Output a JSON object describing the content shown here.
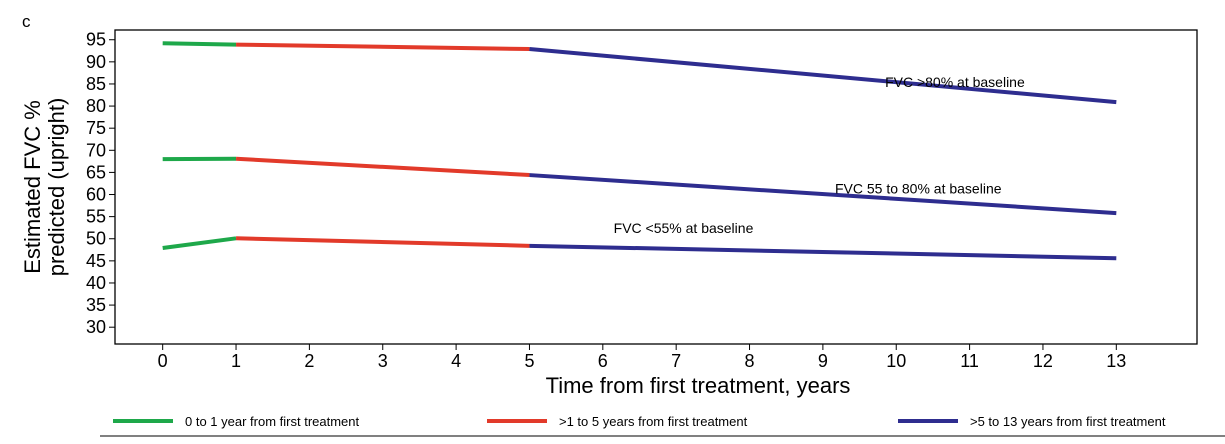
{
  "panel_label": "c",
  "chart_data": {
    "type": "line",
    "xlabel": "Time from first treatment, years",
    "ylabel": "Estimated FVC % predicted (upright)",
    "ylabel_lines": [
      "Estimated FVC %",
      "predicted (upright)"
    ],
    "xlim": [
      -0.65,
      14.1
    ],
    "ylim": [
      26.2,
      97.2
    ],
    "x_ticks": [
      0,
      1,
      2,
      3,
      4,
      5,
      6,
      7,
      8,
      9,
      10,
      11,
      12,
      13
    ],
    "y_ticks": [
      30,
      35,
      40,
      45,
      50,
      55,
      60,
      65,
      70,
      75,
      80,
      85,
      90,
      95
    ],
    "grid": false,
    "legend_position": "bottom",
    "segments": [
      {
        "name": "0 to 1 year from first treatment",
        "color": "#1ea84a",
        "x_range": [
          0,
          1
        ]
      },
      {
        "name": ">1 to 5 years from first treatment",
        "color": "#e23a2a",
        "x_range": [
          1,
          5
        ]
      },
      {
        "name": ">5 to 13 years from first treatment",
        "color": "#2e2d8f",
        "x_range": [
          5,
          13
        ]
      }
    ],
    "series": [
      {
        "label": "FVC >80% at baseline",
        "x": [
          0,
          1,
          5,
          13
        ],
        "y": [
          94.2,
          93.9,
          92.9,
          80.9
        ],
        "label_at": [
          10.8,
          84.3
        ]
      },
      {
        "label": "FVC 55 to 80% at baseline",
        "x": [
          0,
          1,
          5,
          13
        ],
        "y": [
          68.0,
          68.1,
          64.4,
          55.8
        ],
        "label_at": [
          10.3,
          60.2
        ]
      },
      {
        "label": "FVC <55% at baseline",
        "x": [
          0,
          1,
          5,
          13
        ],
        "y": [
          47.9,
          50.1,
          48.4,
          45.6
        ],
        "label_at": [
          7.1,
          51.3
        ]
      }
    ]
  }
}
